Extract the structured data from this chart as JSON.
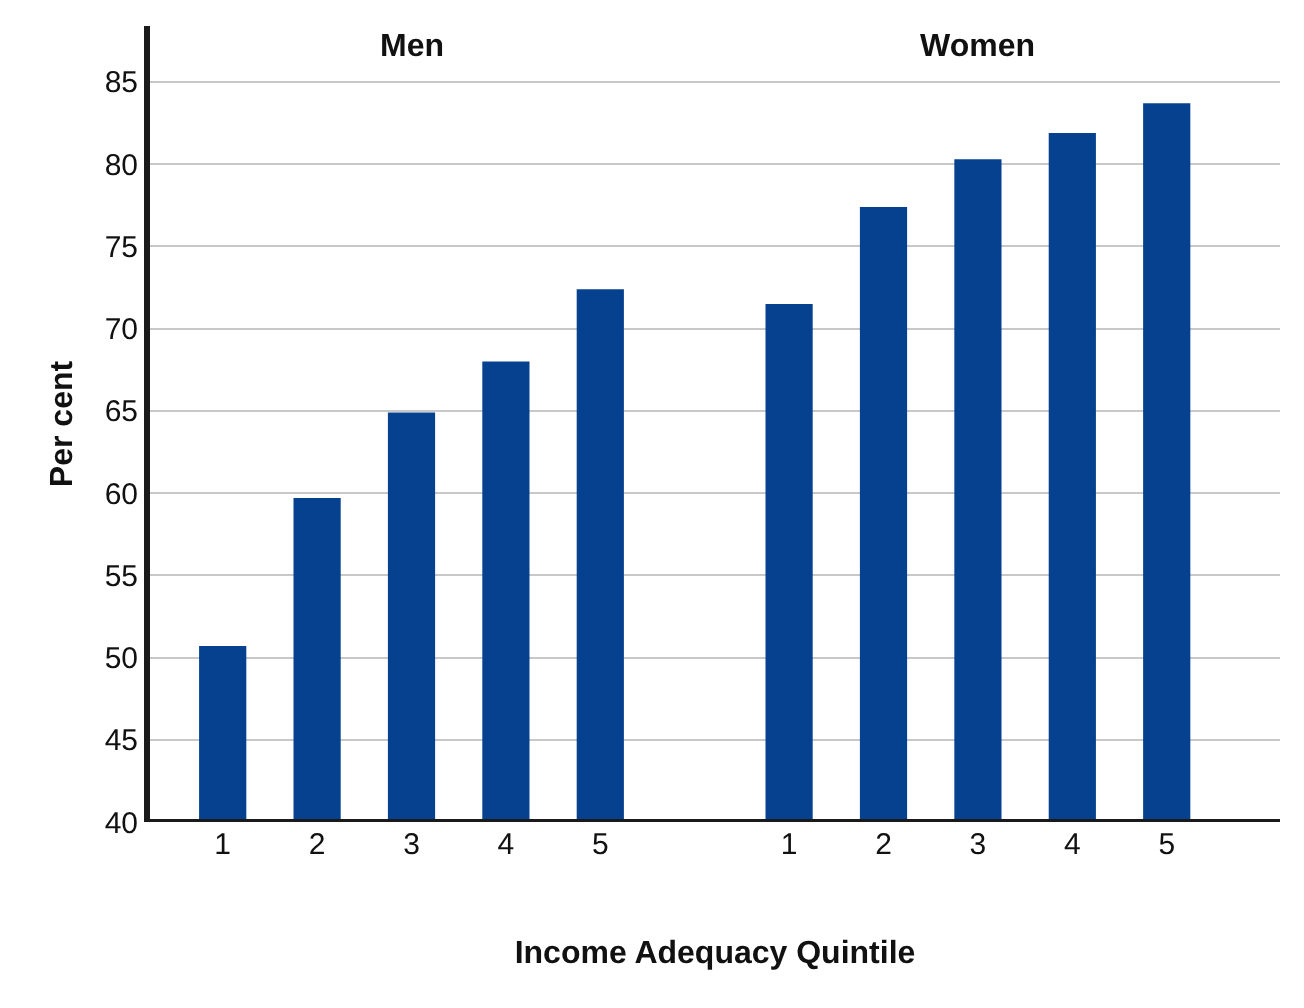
{
  "chart_data": {
    "type": "bar",
    "xlabel": "Income Adequacy Quintile",
    "ylabel": "Per cent",
    "annotations": [
      "Men",
      "Women"
    ],
    "categories": [
      "1",
      "2",
      "3",
      "4",
      "5",
      null,
      "1",
      "2",
      "3",
      "4",
      "5"
    ],
    "values": [
      50.7,
      59.7,
      64.9,
      68.0,
      72.4,
      null,
      71.5,
      77.4,
      80.3,
      81.9,
      83.7
    ],
    "color": "#06418f",
    "ylim": [
      40,
      88.4
    ],
    "yticks": [
      40,
      45,
      50,
      55,
      60,
      65,
      70,
      75,
      80,
      85
    ],
    "grid": "y"
  }
}
